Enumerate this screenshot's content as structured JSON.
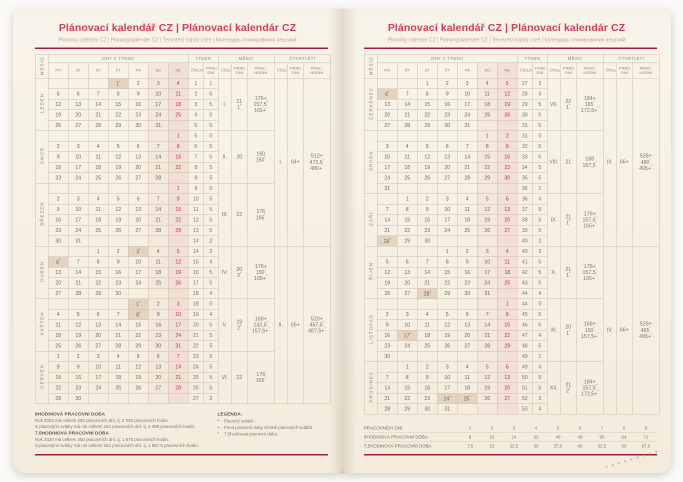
{
  "page": {
    "title": "Plánovací kalendář CZ | Plánovací kalendár CZ",
    "subtitle": "Planning calendar CZ | Planungskalender CZ | Tervezési naptár cseh | Календарь планирования чешский"
  },
  "headers": {
    "month_axis": "MĚSÍC",
    "days_group": "DNY V TÝDNU",
    "days": [
      "PO",
      "ÚT",
      "ST",
      "ČT",
      "PÁ",
      "SO",
      "NE"
    ],
    "week_group": "TÝDEN",
    "week_cols": [
      "ČÍSLO",
      "PRAC. DNÍ"
    ],
    "month_group": "MĚSÍC",
    "month_cols": [
      "ČÍSLO",
      "PRAC. DNÍ",
      "PRAC. HODIN"
    ],
    "quarter_group": "ČTVRTLETÍ",
    "quarter_cols": [
      "ČÍSLO",
      "PRAC. DNÍ",
      "PRAC. HODIN"
    ]
  },
  "months": [
    {
      "name": "LEDEN",
      "num": "I.",
      "dni": [
        "21",
        "1*"
      ],
      "hodin": [
        "168",
        "176+",
        "157,5°",
        "165+°"
      ],
      "weeks": [
        {
          "days": [
            "",
            "",
            "",
            "1*",
            "2",
            "3",
            "4"
          ],
          "week": "1",
          "dni": "1"
        },
        {
          "days": [
            "5",
            "6",
            "7",
            "8",
            "9",
            "10",
            "11"
          ],
          "week": "2",
          "dni": "5"
        },
        {
          "days": [
            "12",
            "13",
            "14",
            "15",
            "16",
            "17",
            "18"
          ],
          "week": "3",
          "dni": "5"
        },
        {
          "days": [
            "19",
            "20",
            "21",
            "22",
            "23",
            "24",
            "25"
          ],
          "week": "4",
          "dni": "5"
        },
        {
          "days": [
            "26",
            "27",
            "28",
            "29",
            "30",
            "31",
            ""
          ],
          "week": "5",
          "dni": "5"
        }
      ]
    },
    {
      "name": "ÚNOR",
      "num": "II.",
      "dni": [
        "20"
      ],
      "hodin": [
        "160",
        "150°"
      ],
      "weeks": [
        {
          "days": [
            "",
            "",
            "",
            "",
            "",
            "",
            "1"
          ],
          "week": "5",
          "dni": "0"
        },
        {
          "days": [
            "2",
            "3",
            "4",
            "5",
            "6",
            "7",
            "8"
          ],
          "week": "6",
          "dni": "5"
        },
        {
          "days": [
            "9",
            "10",
            "11",
            "12",
            "13",
            "14",
            "15"
          ],
          "week": "7",
          "dni": "5"
        },
        {
          "days": [
            "16",
            "17",
            "18",
            "19",
            "20",
            "21",
            "22"
          ],
          "week": "8",
          "dni": "5"
        },
        {
          "days": [
            "23",
            "24",
            "25",
            "26",
            "27",
            "28",
            ""
          ],
          "week": "9",
          "dni": "5"
        }
      ]
    },
    {
      "name": "BŘEZEN",
      "num": "III.",
      "dni": [
        "22"
      ],
      "hodin": [
        "176",
        "165°"
      ],
      "weeks": [
        {
          "days": [
            "",
            "",
            "",
            "",
            "",
            "",
            "1"
          ],
          "week": "9",
          "dni": "0"
        },
        {
          "days": [
            "2",
            "3",
            "4",
            "5",
            "6",
            "7",
            "8"
          ],
          "week": "10",
          "dni": "5"
        },
        {
          "days": [
            "9",
            "10",
            "11",
            "12",
            "13",
            "14",
            "15"
          ],
          "week": "11",
          "dni": "5"
        },
        {
          "days": [
            "16",
            "17",
            "18",
            "19",
            "20",
            "21",
            "22"
          ],
          "week": "12",
          "dni": "5"
        },
        {
          "days": [
            "23",
            "24",
            "25",
            "26",
            "27",
            "28",
            "29"
          ],
          "week": "13",
          "dni": "5"
        },
        {
          "days": [
            "30",
            "31",
            "",
            "",
            "",
            "",
            ""
          ],
          "week": "14",
          "dni": "2"
        }
      ]
    },
    {
      "name": "DUBEN",
      "num": "IV.",
      "dni": [
        "20",
        "2*"
      ],
      "hodin": [
        "160",
        "176+",
        "150°",
        "165+°"
      ],
      "weeks": [
        {
          "days": [
            "",
            "",
            "1",
            "2",
            "3*",
            "4",
            "5"
          ],
          "week": "14",
          "dni": "2"
        },
        {
          "days": [
            "6*",
            "7",
            "8",
            "9",
            "10",
            "11",
            "12"
          ],
          "week": "15",
          "dni": "4"
        },
        {
          "days": [
            "13",
            "14",
            "15",
            "16",
            "17",
            "18",
            "19"
          ],
          "week": "16",
          "dni": "5"
        },
        {
          "days": [
            "20",
            "21",
            "22",
            "23",
            "24",
            "25",
            "26"
          ],
          "week": "17",
          "dni": "5"
        },
        {
          "days": [
            "27",
            "28",
            "29",
            "30",
            "",
            "",
            ""
          ],
          "week": "18",
          "dni": "4"
        }
      ]
    },
    {
      "name": "KVĚTEN",
      "num": "V.",
      "dni": [
        "19",
        "2*"
      ],
      "hodin": [
        "152",
        "168+",
        "142,5°",
        "157,5+°"
      ],
      "weeks": [
        {
          "days": [
            "",
            "",
            "",
            "",
            "1*",
            "2",
            "3"
          ],
          "week": "18",
          "dni": "0"
        },
        {
          "days": [
            "4",
            "5",
            "6",
            "7",
            "8*",
            "9",
            "10"
          ],
          "week": "19",
          "dni": "4"
        },
        {
          "days": [
            "11",
            "12",
            "13",
            "14",
            "15",
            "16",
            "17"
          ],
          "week": "20",
          "dni": "5"
        },
        {
          "days": [
            "18",
            "19",
            "20",
            "21",
            "22",
            "23",
            "24"
          ],
          "week": "21",
          "dni": "5"
        },
        {
          "days": [
            "25",
            "26",
            "27",
            "28",
            "29",
            "30",
            "31"
          ],
          "week": "22",
          "dni": "5"
        }
      ]
    },
    {
      "name": "ČERVEN",
      "num": "VI.",
      "dni": [
        "22"
      ],
      "hodin": [
        "176",
        "165°"
      ],
      "weeks": [
        {
          "days": [
            "1",
            "2",
            "3",
            "4",
            "5",
            "6",
            "7"
          ],
          "week": "23",
          "dni": "5"
        },
        {
          "days": [
            "8",
            "9",
            "10",
            "11",
            "12",
            "13",
            "14"
          ],
          "week": "24",
          "dni": "5"
        },
        {
          "days": [
            "15",
            "16",
            "17",
            "18",
            "19",
            "20",
            "21"
          ],
          "week": "25",
          "dni": "5"
        },
        {
          "days": [
            "22",
            "23",
            "24",
            "25",
            "26",
            "27",
            "28"
          ],
          "week": "26",
          "dni": "5"
        },
        {
          "days": [
            "29",
            "30",
            "",
            "",
            "",
            "",
            ""
          ],
          "week": "27",
          "dni": "2"
        }
      ]
    },
    {
      "name": "ČERVENEC",
      "num": "VII.",
      "dni": [
        "22",
        "1*"
      ],
      "hodin": [
        "176",
        "184+",
        "165°",
        "172,5+°"
      ],
      "weeks": [
        {
          "days": [
            "",
            "",
            "1",
            "2",
            "3",
            "4",
            "5"
          ],
          "week": "27",
          "dni": "3"
        },
        {
          "days": [
            "6*",
            "7",
            "8",
            "9",
            "10",
            "11",
            "12"
          ],
          "week": "28",
          "dni": "4"
        },
        {
          "days": [
            "13",
            "14",
            "15",
            "16",
            "17",
            "18",
            "19"
          ],
          "week": "29",
          "dni": "5"
        },
        {
          "days": [
            "20",
            "21",
            "22",
            "23",
            "24",
            "25",
            "26"
          ],
          "week": "30",
          "dni": "5"
        },
        {
          "days": [
            "27",
            "28",
            "29",
            "30",
            "31",
            "",
            ""
          ],
          "week": "31",
          "dni": "5"
        }
      ]
    },
    {
      "name": "SRPEN",
      "num": "VIII.",
      "dni": [
        "21"
      ],
      "hodin": [
        "168",
        "157,5°"
      ],
      "weeks": [
        {
          "days": [
            "",
            "",
            "",
            "",
            "",
            "1",
            "2"
          ],
          "week": "31",
          "dni": "0"
        },
        {
          "days": [
            "3",
            "4",
            "5",
            "6",
            "7",
            "8",
            "9"
          ],
          "week": "32",
          "dni": "5"
        },
        {
          "days": [
            "10",
            "11",
            "12",
            "13",
            "14",
            "15",
            "16"
          ],
          "week": "33",
          "dni": "5"
        },
        {
          "days": [
            "17",
            "18",
            "19",
            "20",
            "21",
            "22",
            "23"
          ],
          "week": "34",
          "dni": "5"
        },
        {
          "days": [
            "24",
            "25",
            "26",
            "27",
            "28",
            "29",
            "30"
          ],
          "week": "35",
          "dni": "5"
        },
        {
          "days": [
            "31",
            "",
            "",
            "",
            "",
            "",
            ""
          ],
          "week": "36",
          "dni": "1"
        }
      ]
    },
    {
      "name": "ZÁŘÍ",
      "num": "IX.",
      "dni": [
        "21",
        "1*"
      ],
      "hodin": [
        "168",
        "176+",
        "157,5°",
        "165+°"
      ],
      "weeks": [
        {
          "days": [
            "",
            "1",
            "2",
            "3",
            "4",
            "5",
            "6"
          ],
          "week": "36",
          "dni": "4"
        },
        {
          "days": [
            "7",
            "8",
            "9",
            "10",
            "11",
            "12",
            "13"
          ],
          "week": "37",
          "dni": "5"
        },
        {
          "days": [
            "14",
            "15",
            "16",
            "17",
            "18",
            "19",
            "20"
          ],
          "week": "38",
          "dni": "5"
        },
        {
          "days": [
            "21",
            "22",
            "23",
            "24",
            "25",
            "26",
            "27"
          ],
          "week": "39",
          "dni": "5"
        },
        {
          "days": [
            "28*",
            "29",
            "30",
            "",
            "",
            "",
            ""
          ],
          "week": "40",
          "dni": "2"
        }
      ]
    },
    {
      "name": "ŘÍJEN",
      "num": "X.",
      "dni": [
        "21",
        "1*"
      ],
      "hodin": [
        "168",
        "176+",
        "157,5°",
        "165+°"
      ],
      "weeks": [
        {
          "days": [
            "",
            "",
            "",
            "1",
            "2",
            "3",
            "4"
          ],
          "week": "40",
          "dni": "2"
        },
        {
          "days": [
            "5",
            "6",
            "7",
            "8",
            "9",
            "10",
            "11"
          ],
          "week": "41",
          "dni": "5"
        },
        {
          "days": [
            "12",
            "13",
            "14",
            "15",
            "16",
            "17",
            "18"
          ],
          "week": "42",
          "dni": "5"
        },
        {
          "days": [
            "19",
            "20",
            "21",
            "22",
            "23",
            "24",
            "25"
          ],
          "week": "43",
          "dni": "5"
        },
        {
          "days": [
            "26",
            "27",
            "28*",
            "29",
            "30",
            "31",
            ""
          ],
          "week": "44",
          "dni": "4"
        }
      ]
    },
    {
      "name": "LISTOPAD",
      "num": "XI.",
      "dni": [
        "20",
        "1*"
      ],
      "hodin": [
        "160",
        "168+",
        "150°",
        "157,5+°"
      ],
      "weeks": [
        {
          "days": [
            "",
            "",
            "",
            "",
            "",
            "",
            "1"
          ],
          "week": "44",
          "dni": "0"
        },
        {
          "days": [
            "2",
            "3",
            "4",
            "5",
            "6",
            "7",
            "8"
          ],
          "week": "45",
          "dni": "5"
        },
        {
          "days": [
            "9",
            "10",
            "11",
            "12",
            "13",
            "14",
            "15"
          ],
          "week": "46",
          "dni": "5"
        },
        {
          "days": [
            "16",
            "17*",
            "18",
            "19",
            "20",
            "21",
            "22"
          ],
          "week": "47",
          "dni": "4"
        },
        {
          "days": [
            "23",
            "24",
            "25",
            "26",
            "27",
            "28",
            "29"
          ],
          "week": "48",
          "dni": "5"
        },
        {
          "days": [
            "30",
            "",
            "",
            "",
            "",
            "",
            ""
          ],
          "week": "49",
          "dni": "1"
        }
      ]
    },
    {
      "name": "PROSINEC",
      "num": "XII.",
      "dni": [
        "21",
        "2*"
      ],
      "hodin": [
        "168",
        "184+",
        "157,5°",
        "172,5+°"
      ],
      "weeks": [
        {
          "days": [
            "",
            "1",
            "2",
            "3",
            "4",
            "5",
            "6"
          ],
          "week": "49",
          "dni": "4"
        },
        {
          "days": [
            "7",
            "8",
            "9",
            "10",
            "11",
            "12",
            "13"
          ],
          "week": "50",
          "dni": "5"
        },
        {
          "days": [
            "14",
            "15",
            "16",
            "17",
            "18",
            "19",
            "20"
          ],
          "week": "51",
          "dni": "5"
        },
        {
          "days": [
            "21",
            "22",
            "23",
            "24*",
            "25*",
            "26",
            "27"
          ],
          "week": "52",
          "dni": "3"
        },
        {
          "days": [
            "28",
            "29",
            "30",
            "31",
            "",
            "",
            ""
          ],
          "week": "53",
          "dni": "4"
        }
      ]
    }
  ],
  "quarters": [
    {
      "num": "I.",
      "dni": [
        "63",
        "64+"
      ],
      "hodin": [
        "504",
        "512+",
        "472,5°",
        "480+°"
      ]
    },
    {
      "num": "II.",
      "dni": [
        "61",
        "65+"
      ],
      "hodin": [
        "488",
        "520+",
        "457,5°",
        "487,5+°"
      ]
    },
    {
      "num": "III.",
      "dni": [
        "64",
        "66+"
      ],
      "hodin": [
        "512",
        "528+",
        "480°",
        "495+°"
      ]
    },
    {
      "num": "IV.",
      "dni": [
        "62",
        "66+"
      ],
      "hodin": [
        "496",
        "528+",
        "465°",
        "495+°"
      ]
    }
  ],
  "summary": {
    "h8_title": "8HODINOVÁ PRACOVNÍ DOBA",
    "h8_line1": "Rok 2026 má celkem 250 pracovních dní, tj. 2 000 pracovních hodin.",
    "h8_line2": "S placenými svátky má rok celkem 261 pracovních dní, tj. 2 088 pracovních hodin.",
    "h75_title": "7,5HODINOVÁ PRACOVNÍ DOBA",
    "h75_line1": "Rok 2026 má celkem 250 pracovních dní, tj. 1 875 pracovních hodin.",
    "h75_line2": "S placenými svátky má rok celkem 261 pracovních dní, tj. 1 957,5 pracovních hodin."
  },
  "legend": {
    "title": "LEGENDA:",
    "items": [
      {
        "symbol": "*",
        "text": "Placený svátek"
      },
      {
        "symbol": "+",
        "text": "Fond pracovní doby včetně placených svátků"
      },
      {
        "symbol": "°",
        "text": "7,5hodinová pracovní doba"
      }
    ]
  },
  "conversion_table": {
    "rows": [
      {
        "label": "PRACOVNÍCH DNÍ",
        "values": [
          "1",
          "2",
          "3",
          "4",
          "5",
          "6",
          "7",
          "8",
          "9"
        ]
      },
      {
        "label": "8HODINOVÁ PRACOVNÍ DOBA",
        "values": [
          "8",
          "16",
          "24",
          "32",
          "40",
          "48",
          "56",
          "64",
          "72"
        ]
      },
      {
        "label": "7,5HODINOVÁ PRACOVNÍ DOBA",
        "values": [
          "7,5",
          "15",
          "22,5",
          "30",
          "37,5",
          "45",
          "52,5",
          "60",
          "67,5"
        ]
      }
    ]
  },
  "colors": {
    "title": "#d93a56",
    "rule": "#9e2236",
    "sunday": "#c22b45",
    "weekend_bg": "#f2e0d7",
    "holiday_bg": "#e4d3c1",
    "page_bg": "#f7f1e5"
  }
}
